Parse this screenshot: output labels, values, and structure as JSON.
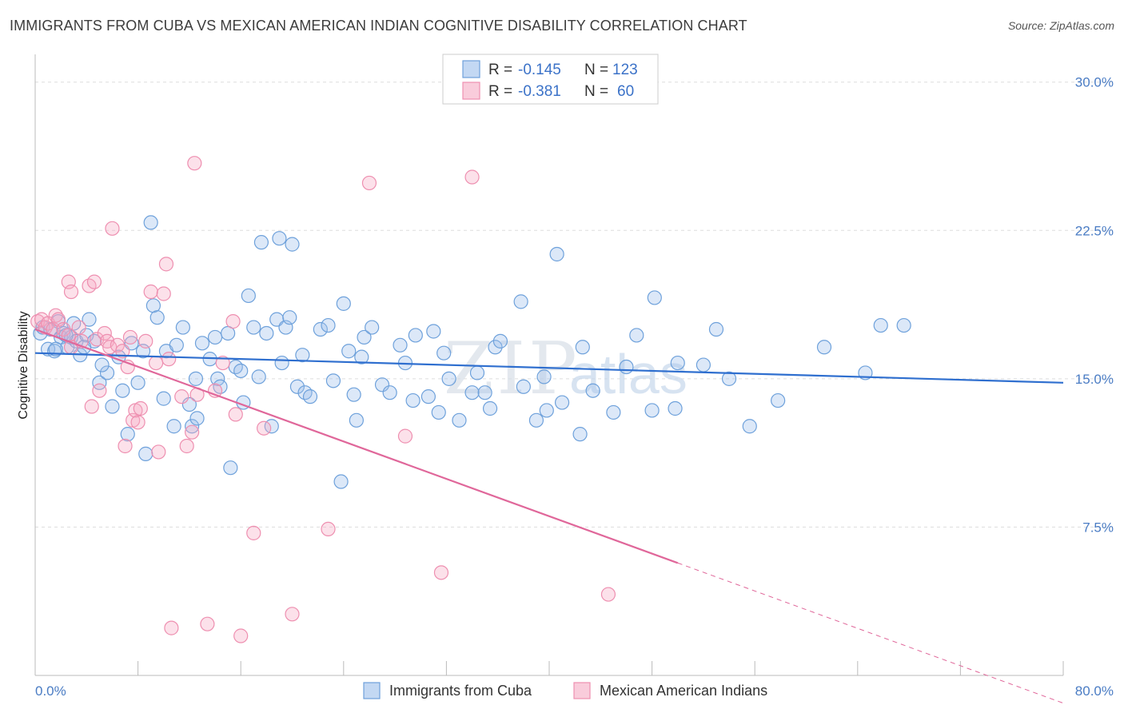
{
  "title": "IMMIGRANTS FROM CUBA VS MEXICAN AMERICAN INDIAN COGNITIVE DISABILITY CORRELATION CHART",
  "source": "Source: ZipAtlas.com",
  "watermark": {
    "zip": "ZIP",
    "atlas": "atlas"
  },
  "colors": {
    "blue": "#6ea1db",
    "blue_fill": "rgba(155,190,235,0.35)",
    "blue_line": "#2f6fcf",
    "pink": "#ee8fb0",
    "pink_fill": "rgba(245,170,195,0.35)",
    "pink_line": "#e0679a",
    "tick": "#4a7cc4",
    "grid": "#dddddd"
  },
  "legend": {
    "rows": [
      {
        "r_label": "R = ",
        "r_value": "-0.145",
        "n_label": "N = ",
        "n_value": "123"
      },
      {
        "r_label": "R = ",
        "r_value": "-0.381",
        "n_label": "N = ",
        "n_value": "60"
      }
    ]
  },
  "chart_data": {
    "type": "scatter",
    "title": "IMMIGRANTS FROM CUBA VS MEXICAN AMERICAN INDIAN COGNITIVE DISABILITY CORRELATION CHART",
    "xlabel": "",
    "ylabel": "Cognitive Disability",
    "xlim": [
      0,
      80
    ],
    "ylim": [
      0,
      31
    ],
    "x_tick_labels": [
      "0.0%",
      "80.0%"
    ],
    "y_ticks": [
      7.5,
      15.0,
      22.5,
      30.0
    ],
    "y_tick_labels": [
      "7.5%",
      "15.0%",
      "22.5%",
      "30.0%"
    ],
    "grid": true,
    "legend_position": "top-center",
    "series": [
      {
        "name": "Immigrants from Cuba",
        "color": "#6ea1db",
        "trend": {
          "x": [
            0,
            80
          ],
          "y": [
            16.3,
            14.8
          ]
        },
        "points": [
          [
            0.4,
            17.3
          ],
          [
            0.6,
            17.6
          ],
          [
            1.0,
            16.5
          ],
          [
            1.2,
            17.5
          ],
          [
            1.5,
            16.4
          ],
          [
            1.8,
            17.9
          ],
          [
            2.0,
            17.1
          ],
          [
            2.2,
            17.3
          ],
          [
            2.5,
            16.6
          ],
          [
            2.8,
            17.1
          ],
          [
            3.0,
            17.8
          ],
          [
            3.2,
            16.9
          ],
          [
            3.5,
            16.2
          ],
          [
            4.0,
            17.2
          ],
          [
            4.2,
            18.0
          ],
          [
            4.6,
            16.9
          ],
          [
            5.0,
            14.8
          ],
          [
            5.6,
            15.3
          ],
          [
            6.0,
            13.6
          ],
          [
            6.5,
            16.1
          ],
          [
            6.8,
            14.4
          ],
          [
            7.2,
            12.2
          ],
          [
            7.5,
            16.8
          ],
          [
            8.0,
            14.8
          ],
          [
            8.4,
            16.4
          ],
          [
            8.6,
            11.2
          ],
          [
            9.0,
            22.9
          ],
          [
            9.2,
            18.7
          ],
          [
            9.5,
            18.1
          ],
          [
            10.0,
            14.0
          ],
          [
            10.2,
            16.4
          ],
          [
            10.8,
            12.6
          ],
          [
            11.5,
            17.6
          ],
          [
            12.0,
            13.7
          ],
          [
            12.2,
            12.6
          ],
          [
            12.5,
            15.0
          ],
          [
            12.6,
            13.0
          ],
          [
            13.0,
            16.8
          ],
          [
            13.6,
            16.0
          ],
          [
            14.0,
            17.1
          ],
          [
            14.2,
            15.0
          ],
          [
            14.4,
            14.6
          ],
          [
            15.0,
            17.3
          ],
          [
            15.2,
            10.5
          ],
          [
            15.6,
            15.6
          ],
          [
            16.0,
            15.4
          ],
          [
            16.2,
            13.8
          ],
          [
            16.6,
            19.2
          ],
          [
            17.0,
            17.6
          ],
          [
            17.4,
            15.1
          ],
          [
            17.6,
            21.9
          ],
          [
            18.0,
            17.3
          ],
          [
            18.4,
            12.6
          ],
          [
            18.8,
            18.0
          ],
          [
            19.0,
            22.1
          ],
          [
            19.2,
            15.8
          ],
          [
            19.5,
            17.6
          ],
          [
            19.8,
            18.1
          ],
          [
            20.0,
            21.8
          ],
          [
            20.4,
            14.6
          ],
          [
            20.8,
            16.2
          ],
          [
            21.0,
            14.3
          ],
          [
            21.4,
            14.1
          ],
          [
            22.2,
            17.5
          ],
          [
            22.8,
            17.7
          ],
          [
            23.2,
            14.9
          ],
          [
            23.8,
            9.8
          ],
          [
            24.0,
            18.8
          ],
          [
            24.4,
            16.4
          ],
          [
            24.8,
            14.2
          ],
          [
            25.0,
            12.9
          ],
          [
            25.4,
            16.1
          ],
          [
            25.6,
            17.1
          ],
          [
            26.2,
            17.6
          ],
          [
            27.0,
            14.7
          ],
          [
            27.6,
            14.3
          ],
          [
            28.4,
            16.7
          ],
          [
            28.8,
            15.8
          ],
          [
            29.4,
            13.9
          ],
          [
            29.6,
            17.2
          ],
          [
            30.6,
            14.1
          ],
          [
            31.0,
            17.4
          ],
          [
            31.4,
            13.3
          ],
          [
            31.8,
            16.3
          ],
          [
            32.2,
            15.0
          ],
          [
            33.0,
            12.9
          ],
          [
            34.0,
            14.3
          ],
          [
            34.4,
            15.3
          ],
          [
            35.0,
            14.3
          ],
          [
            35.4,
            13.5
          ],
          [
            35.8,
            16.6
          ],
          [
            36.2,
            16.9
          ],
          [
            37.8,
            18.9
          ],
          [
            38.0,
            14.6
          ],
          [
            39.0,
            12.9
          ],
          [
            39.6,
            15.1
          ],
          [
            39.8,
            13.4
          ],
          [
            40.6,
            21.3
          ],
          [
            41.0,
            13.8
          ],
          [
            42.4,
            12.2
          ],
          [
            42.6,
            16.6
          ],
          [
            43.4,
            14.4
          ],
          [
            45.0,
            13.3
          ],
          [
            46.0,
            15.6
          ],
          [
            46.8,
            17.2
          ],
          [
            48.0,
            13.4
          ],
          [
            48.2,
            19.1
          ],
          [
            49.8,
            13.5
          ],
          [
            50.0,
            15.8
          ],
          [
            52.0,
            15.7
          ],
          [
            53.0,
            17.5
          ],
          [
            54.0,
            15.0
          ],
          [
            55.6,
            12.6
          ],
          [
            57.8,
            13.9
          ],
          [
            61.4,
            16.6
          ],
          [
            64.6,
            15.3
          ],
          [
            65.8,
            17.7
          ],
          [
            67.6,
            17.7
          ],
          [
            1.6,
            16.5
          ],
          [
            2.4,
            17.2
          ],
          [
            3.8,
            16.6
          ],
          [
            5.2,
            15.7
          ],
          [
            11.0,
            16.7
          ]
        ]
      },
      {
        "name": "Mexican American Indians",
        "color": "#ee8fb0",
        "trend": {
          "x": [
            0,
            80
          ],
          "y": [
            17.5,
            -1.4
          ]
        },
        "trend_solid_to": 50,
        "points": [
          [
            0.2,
            17.9
          ],
          [
            0.5,
            18.0
          ],
          [
            0.8,
            17.6
          ],
          [
            1.0,
            17.8
          ],
          [
            1.4,
            17.5
          ],
          [
            1.6,
            18.2
          ],
          [
            1.8,
            18.0
          ],
          [
            2.2,
            17.5
          ],
          [
            2.6,
            17.2
          ],
          [
            2.8,
            16.6
          ],
          [
            2.6,
            19.9
          ],
          [
            2.8,
            19.4
          ],
          [
            3.4,
            17.6
          ],
          [
            3.6,
            16.9
          ],
          [
            4.2,
            19.7
          ],
          [
            4.4,
            13.6
          ],
          [
            4.6,
            19.9
          ],
          [
            4.8,
            17.0
          ],
          [
            5.0,
            14.4
          ],
          [
            5.4,
            17.3
          ],
          [
            5.6,
            16.9
          ],
          [
            5.8,
            16.6
          ],
          [
            6.0,
            22.6
          ],
          [
            6.4,
            16.7
          ],
          [
            6.8,
            16.4
          ],
          [
            7.0,
            11.6
          ],
          [
            7.2,
            15.6
          ],
          [
            7.4,
            17.1
          ],
          [
            7.6,
            12.9
          ],
          [
            7.8,
            13.4
          ],
          [
            8.0,
            12.8
          ],
          [
            8.2,
            13.5
          ],
          [
            8.6,
            16.9
          ],
          [
            9.0,
            19.4
          ],
          [
            9.4,
            15.8
          ],
          [
            9.6,
            11.3
          ],
          [
            10.0,
            19.3
          ],
          [
            10.2,
            20.8
          ],
          [
            10.4,
            16.0
          ],
          [
            11.4,
            14.1
          ],
          [
            11.8,
            11.6
          ],
          [
            12.2,
            12.3
          ],
          [
            12.4,
            25.9
          ],
          [
            12.6,
            14.2
          ],
          [
            13.4,
            2.6
          ],
          [
            14.0,
            14.4
          ],
          [
            14.6,
            15.8
          ],
          [
            15.4,
            17.9
          ],
          [
            15.6,
            13.2
          ],
          [
            16.0,
            2.0
          ],
          [
            17.0,
            7.2
          ],
          [
            17.8,
            12.5
          ],
          [
            20.0,
            3.1
          ],
          [
            22.8,
            7.4
          ],
          [
            26.0,
            24.9
          ],
          [
            28.8,
            12.1
          ],
          [
            31.6,
            5.2
          ],
          [
            34.0,
            25.2
          ],
          [
            44.6,
            4.1
          ],
          [
            10.6,
            2.4
          ]
        ]
      }
    ]
  },
  "bottom_legend": {
    "items": [
      "Immigrants from Cuba",
      "Mexican American Indians"
    ]
  }
}
